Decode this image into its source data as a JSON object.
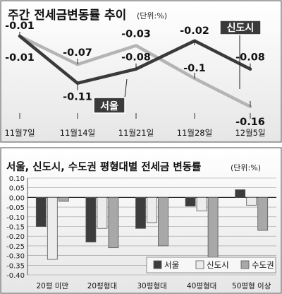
{
  "chart_data": [
    {
      "type": "line",
      "title": "주간 전세금변동률 추이",
      "unit": "(단위:%)",
      "x": [
        "11월7일",
        "11월14일",
        "11월21일",
        "11월28일",
        "12월5일"
      ],
      "ylim": [
        -0.18,
        0.01
      ],
      "series": [
        {
          "name": "서울",
          "color": "#3a3a3a",
          "values": [
            -0.01,
            -0.11,
            -0.08,
            -0.02,
            -0.08
          ]
        },
        {
          "name": "신도시",
          "color": "#b4b4b4",
          "values": [
            -0.01,
            -0.07,
            -0.03,
            -0.1,
            -0.16
          ]
        }
      ],
      "data_labels": {
        "series0": [
          "-0.01",
          "-0.11",
          "-0.08",
          "-0.02",
          "-0.08"
        ],
        "series1": [
          "-0.01",
          "-0.07",
          "-0.03",
          "-0.1",
          "-0.16"
        ]
      }
    },
    {
      "type": "bar",
      "title": "서울, 신도시, 수도권 평형대별 전세금 변동률",
      "unit": "(단위:%)",
      "categories": [
        "20평 미만",
        "20평형대",
        "30평형대",
        "40평형대",
        "50평형 이상"
      ],
      "ylim": [
        -0.4,
        0.1
      ],
      "yticks": [
        "0.10",
        "0.05",
        "0.00",
        "-0.05",
        "-0.10",
        "-0.15",
        "-0.20",
        "-0.25",
        "-0.30",
        "-0.35",
        "-0.40"
      ],
      "series": [
        {
          "name": "서울",
          "color": "#3c3c3c",
          "values": [
            -0.15,
            -0.23,
            -0.16,
            -0.045,
            0.04
          ]
        },
        {
          "name": "신도시",
          "color": "#ececec",
          "values": [
            -0.32,
            -0.16,
            -0.13,
            -0.07,
            -0.04
          ]
        },
        {
          "name": "수도권",
          "color": "#a8a8a8",
          "values": [
            -0.02,
            -0.26,
            -0.25,
            -0.36,
            -0.17
          ]
        }
      ],
      "legend_position": "bottom-right",
      "grid": true
    }
  ]
}
